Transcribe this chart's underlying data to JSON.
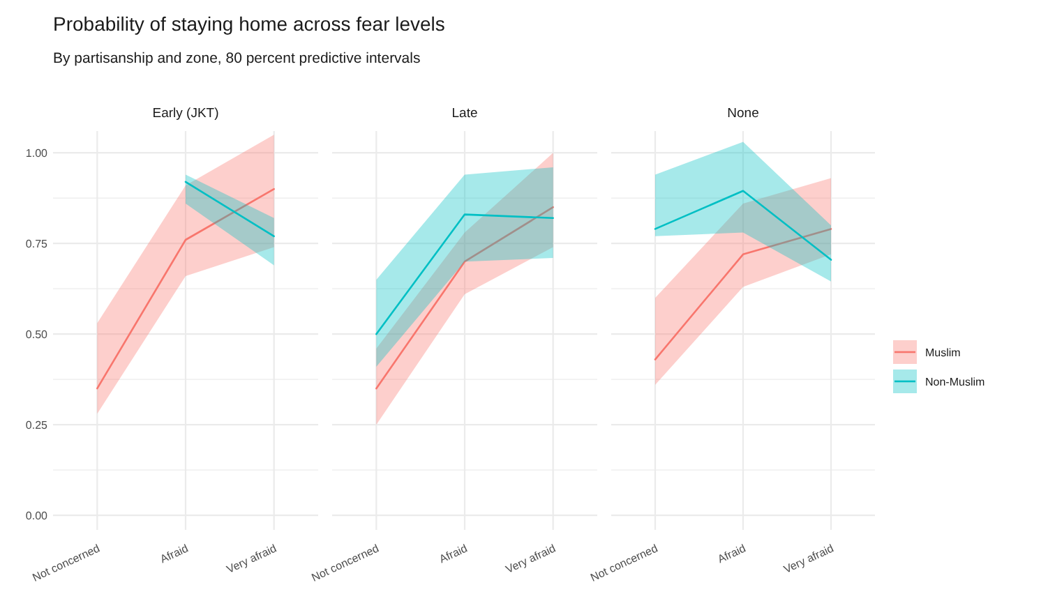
{
  "chart_data": [
    {
      "type": "line",
      "title": "Probability of staying home across fear levels",
      "subtitle": "By partisanship and zone, 80 percent predictive intervals",
      "annotations": [
        "Early (JKT)"
      ],
      "categories": [
        "Not concerned",
        "Afraid",
        "Very afraid"
      ],
      "ylim": [
        -0.04,
        1.06
      ],
      "yticks": [
        {
          "value": 0,
          "label": "0.00"
        },
        {
          "value": 0.125,
          "label": null
        },
        {
          "value": 0.25,
          "label": "0.25"
        },
        {
          "value": 0.375,
          "label": null
        },
        {
          "value": 0.5,
          "label": "0.50"
        },
        {
          "value": 0.625,
          "label": null
        },
        {
          "value": 0.75,
          "label": "0.75"
        },
        {
          "value": 0.875,
          "label": null
        },
        {
          "value": 1,
          "label": "1.00"
        }
      ],
      "grid": true,
      "legend": "right",
      "series": [
        {
          "name": "Muslim",
          "color": "#f8766d",
          "values": [
            0.35,
            0.76,
            0.9
          ],
          "lower": [
            0.28,
            0.66,
            0.74
          ],
          "upper": [
            0.53,
            0.91,
            1.05
          ]
        },
        {
          "name": "Non-Muslim",
          "color": "#00bfc4",
          "values": [
            null,
            0.92,
            0.77
          ],
          "lower": [
            null,
            0.86,
            0.69
          ],
          "upper": [
            null,
            0.94,
            0.82
          ]
        }
      ]
    },
    {
      "type": "line",
      "annotations": [
        "Late"
      ],
      "categories": [
        "Not concerned",
        "Afraid",
        "Very afraid"
      ],
      "ylim": [
        -0.04,
        1.06
      ],
      "yticks": [
        {
          "value": 0,
          "label": null
        },
        {
          "value": 0.125,
          "label": null
        },
        {
          "value": 0.25,
          "label": null
        },
        {
          "value": 0.375,
          "label": null
        },
        {
          "value": 0.5,
          "label": null
        },
        {
          "value": 0.625,
          "label": null
        },
        {
          "value": 0.75,
          "label": null
        },
        {
          "value": 0.875,
          "label": null
        },
        {
          "value": 1,
          "label": null
        }
      ],
      "tick_labels": "x",
      "grid": true,
      "series": [
        {
          "color": "#f8766d",
          "values": [
            0.35,
            0.7,
            0.85
          ],
          "lower": [
            0.25,
            0.61,
            0.74
          ],
          "upper": [
            0.46,
            0.78,
            1.0
          ]
        },
        {
          "color": "#00bfc4",
          "values": [
            0.5,
            0.83,
            0.82
          ],
          "lower": [
            0.41,
            0.7,
            0.71
          ],
          "upper": [
            0.65,
            0.94,
            0.96
          ]
        }
      ]
    },
    {
      "type": "line",
      "annotations": [
        "None"
      ],
      "categories": [
        "Not concerned",
        "Afraid",
        "Very afraid"
      ],
      "ylim": [
        -0.04,
        1.06
      ],
      "yticks": [
        {
          "value": 0,
          "label": null
        },
        {
          "value": 0.125,
          "label": null
        },
        {
          "value": 0.25,
          "label": null
        },
        {
          "value": 0.375,
          "label": null
        },
        {
          "value": 0.5,
          "label": null
        },
        {
          "value": 0.625,
          "label": null
        },
        {
          "value": 0.75,
          "label": null
        },
        {
          "value": 0.875,
          "label": null
        },
        {
          "value": 1,
          "label": null
        }
      ],
      "tick_labels": "x",
      "grid": true,
      "series": [
        {
          "color": "#f8766d",
          "values": [
            0.43,
            0.72,
            0.79
          ],
          "lower": [
            0.36,
            0.63,
            0.72
          ],
          "upper": [
            0.6,
            0.86,
            0.93
          ]
        },
        {
          "color": "#00bfc4",
          "values": [
            0.79,
            0.895,
            0.705
          ],
          "lower": [
            0.77,
            0.78,
            0.645
          ],
          "upper": [
            0.94,
            1.03,
            0.8
          ]
        }
      ]
    }
  ]
}
